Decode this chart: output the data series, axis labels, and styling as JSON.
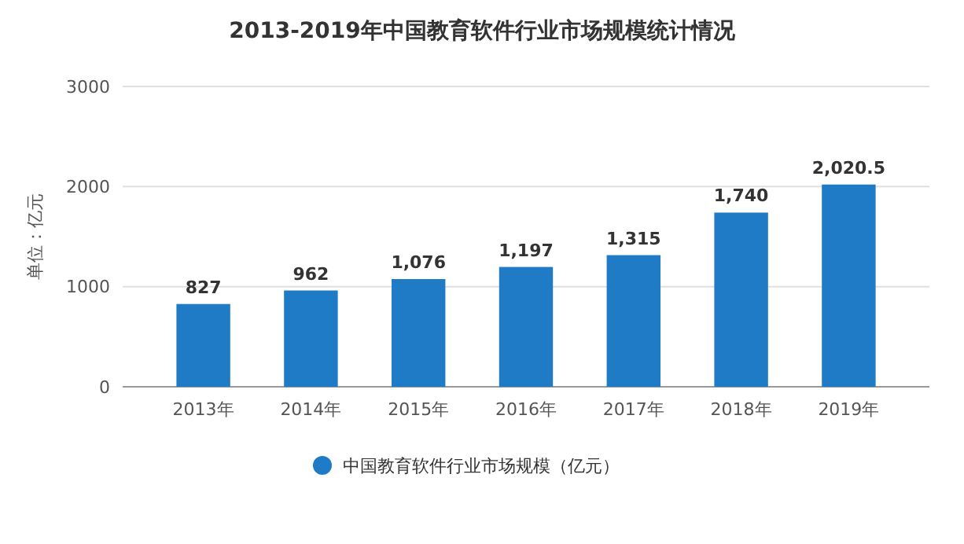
{
  "chart_data": {
    "type": "bar",
    "title": "2013-2019年中国教育软件行业市场规模统计情况",
    "ylabel": "单位：亿元",
    "categories": [
      "2013年",
      "2014年",
      "2015年",
      "2016年",
      "2017年",
      "2018年",
      "2019年"
    ],
    "series": [
      {
        "name": "中国教育软件行业市场规模（亿元）",
        "color": "#1f7bc6",
        "values": [
          827,
          962,
          1076,
          1197,
          1315,
          1740,
          2020.5
        ]
      }
    ],
    "value_labels": [
      "827",
      "962",
      "1,076",
      "1,197",
      "1,315",
      "1,740",
      "2,020.5"
    ],
    "ylim": [
      0,
      3000
    ],
    "yticks": [
      0,
      1000,
      2000,
      3000
    ],
    "grid": "y",
    "legend": "bottom"
  }
}
